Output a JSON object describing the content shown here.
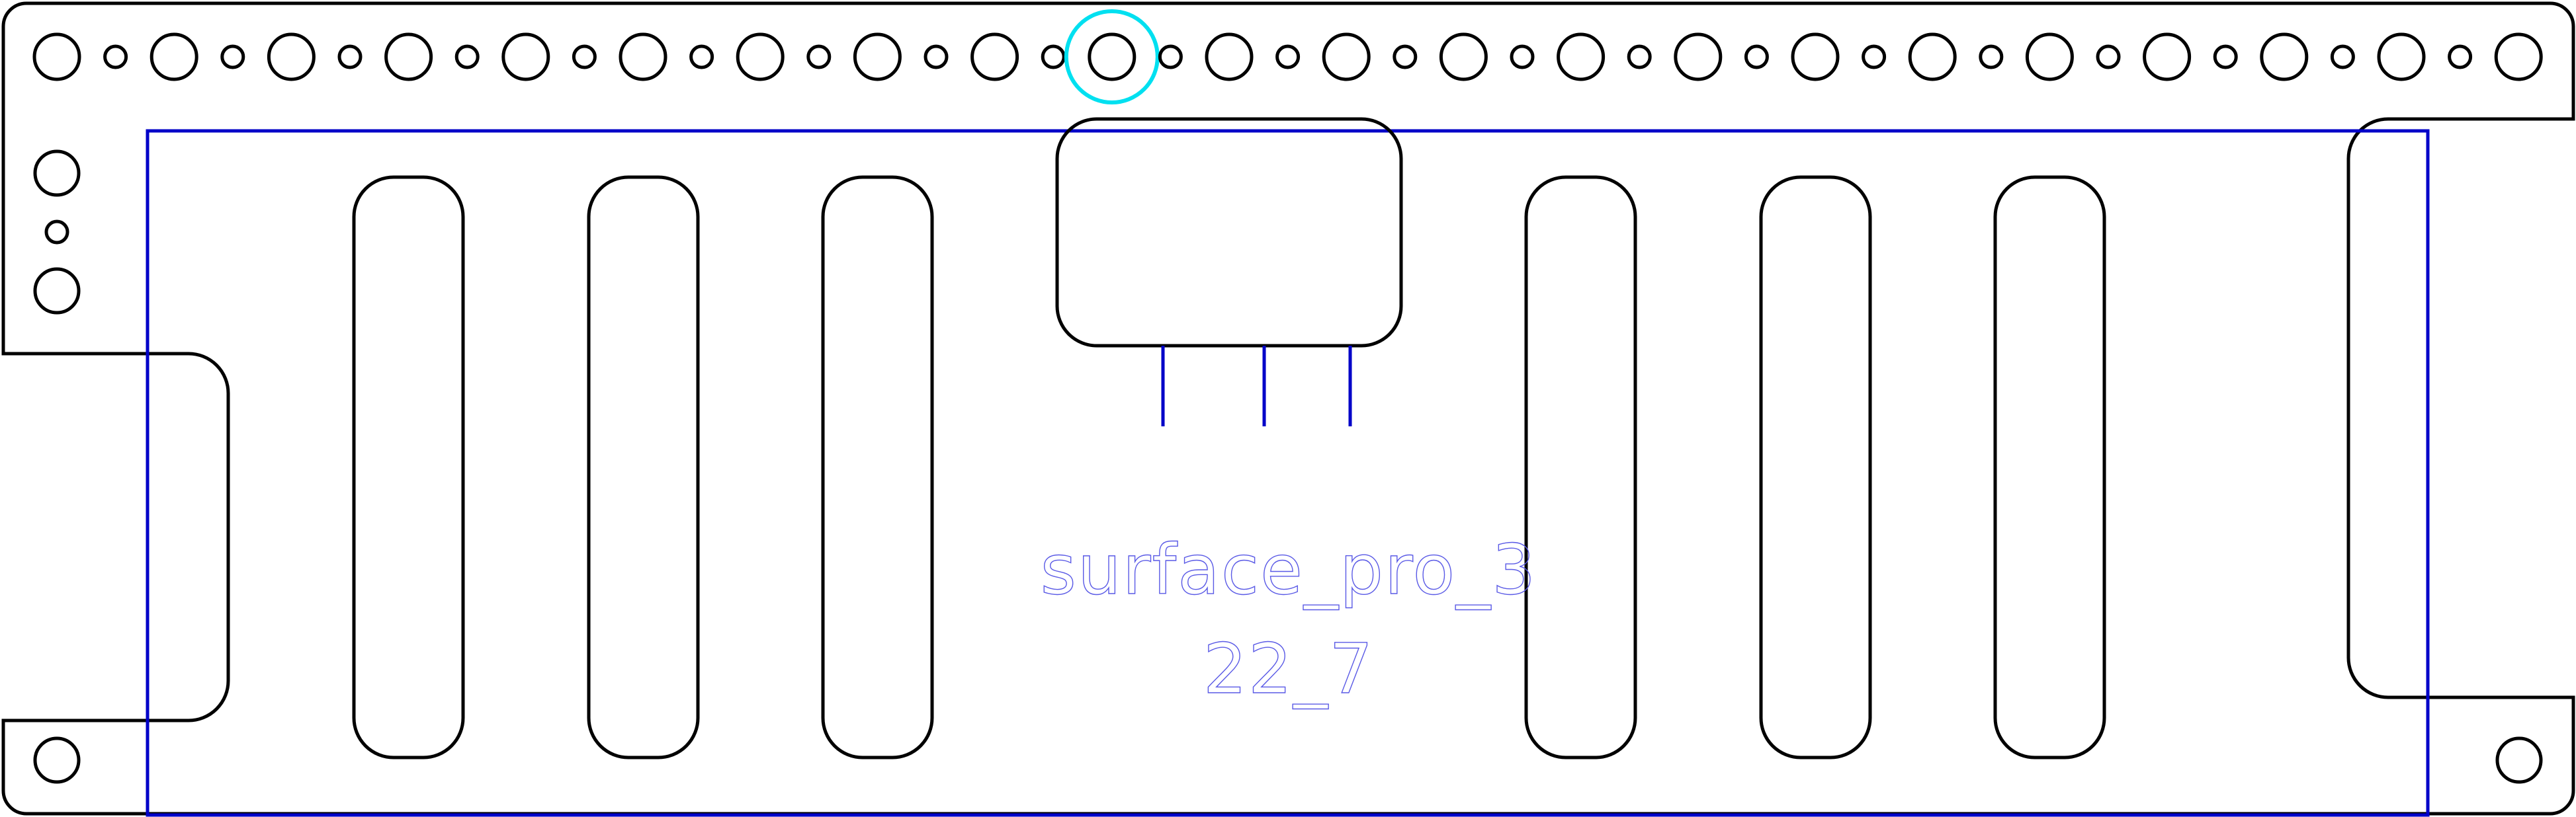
{
  "diagram": {
    "label_name": "surface_pro_3",
    "label_code": "22_7",
    "colors": {
      "outline": "#000000",
      "layout_frame": "#0000c8",
      "selection": "#00e0f0",
      "engraving": "#5a5ae6"
    },
    "hole_row": {
      "count": 43,
      "selected_index": 18
    },
    "side_holes": 3,
    "corner_holes": 2,
    "slots": 6,
    "connector_window": 1,
    "connector_pins": 3
  }
}
